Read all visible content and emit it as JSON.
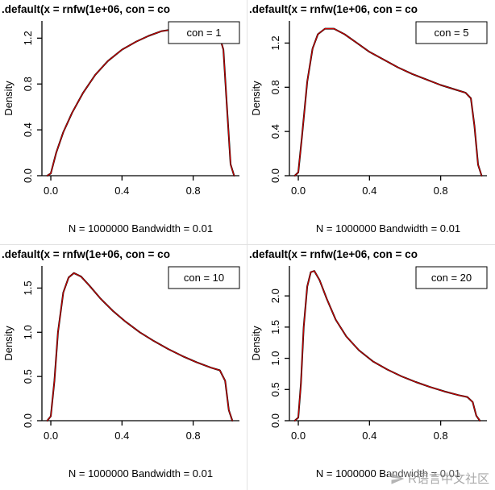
{
  "watermark": {
    "text": "R语言中文社区",
    "icon": "paper-plane-icon"
  },
  "chart_data": [
    {
      "type": "line",
      "title": ".default(x = rnfw(1e+06, con = co",
      "subtitle": "N = 1000000   Bandwidth = 0.01",
      "ylabel": "Density",
      "legend": "con = 1",
      "legend_position": "top-right",
      "grid": false,
      "xlim": [
        -0.05,
        1.06
      ],
      "ylim": [
        0,
        1.35
      ],
      "xticks": [
        0.0,
        0.4,
        0.8
      ],
      "yticks": [
        0.0,
        0.4,
        0.8,
        1.2
      ],
      "series": [
        {
          "name": "kernel-density",
          "color": "#000000"
        },
        {
          "name": "reference-overlay",
          "color": "#d40000"
        }
      ],
      "x": [
        -0.02,
        0.0,
        0.03,
        0.07,
        0.12,
        0.18,
        0.25,
        0.32,
        0.4,
        0.48,
        0.55,
        0.62,
        0.7,
        0.78,
        0.85,
        0.9,
        0.94,
        0.97,
        0.99,
        1.01,
        1.03
      ],
      "y": [
        0,
        0.02,
        0.2,
        0.38,
        0.55,
        0.72,
        0.88,
        1.0,
        1.1,
        1.17,
        1.22,
        1.26,
        1.28,
        1.3,
        1.3,
        1.29,
        1.26,
        1.1,
        0.6,
        0.1,
        0
      ]
    },
    {
      "type": "line",
      "title": ".default(x = rnfw(1e+06, con = co",
      "subtitle": "N = 1000000   Bandwidth = 0.01",
      "ylabel": "Density",
      "legend": "con = 5",
      "legend_position": "top-right",
      "grid": false,
      "xlim": [
        -0.05,
        1.06
      ],
      "ylim": [
        0,
        1.4
      ],
      "xticks": [
        0.0,
        0.4,
        0.8
      ],
      "yticks": [
        0.0,
        0.4,
        0.8,
        1.2
      ],
      "series": [
        {
          "name": "kernel-density",
          "color": "#000000"
        },
        {
          "name": "reference-overlay",
          "color": "#d40000"
        }
      ],
      "x": [
        -0.02,
        0.0,
        0.02,
        0.05,
        0.08,
        0.11,
        0.15,
        0.2,
        0.26,
        0.33,
        0.4,
        0.48,
        0.56,
        0.64,
        0.72,
        0.8,
        0.88,
        0.94,
        0.97,
        0.99,
        1.01,
        1.03
      ],
      "y": [
        0,
        0.03,
        0.35,
        0.85,
        1.15,
        1.28,
        1.33,
        1.33,
        1.28,
        1.2,
        1.12,
        1.05,
        0.98,
        0.92,
        0.87,
        0.82,
        0.78,
        0.75,
        0.7,
        0.45,
        0.1,
        0
      ]
    },
    {
      "type": "line",
      "title": ".default(x = rnfw(1e+06, con = co",
      "subtitle": "N = 1000000   Bandwidth = 0.01",
      "ylabel": "Density",
      "legend": "con = 10",
      "legend_position": "top-right",
      "grid": false,
      "xlim": [
        -0.05,
        1.06
      ],
      "ylim": [
        0,
        1.75
      ],
      "xticks": [
        0.0,
        0.4,
        0.8
      ],
      "yticks": [
        0.0,
        0.5,
        1.0,
        1.5
      ],
      "series": [
        {
          "name": "kernel-density",
          "color": "#000000"
        },
        {
          "name": "reference-overlay",
          "color": "#d40000"
        }
      ],
      "x": [
        -0.02,
        0.0,
        0.02,
        0.04,
        0.07,
        0.1,
        0.13,
        0.17,
        0.22,
        0.28,
        0.35,
        0.42,
        0.5,
        0.58,
        0.66,
        0.74,
        0.82,
        0.9,
        0.95,
        0.98,
        1.0,
        1.02
      ],
      "y": [
        0,
        0.05,
        0.45,
        1.0,
        1.45,
        1.62,
        1.67,
        1.63,
        1.52,
        1.38,
        1.24,
        1.12,
        1.0,
        0.9,
        0.81,
        0.73,
        0.66,
        0.6,
        0.57,
        0.45,
        0.12,
        0
      ]
    },
    {
      "type": "line",
      "title": ".default(x = rnfw(1e+06, con = co",
      "subtitle": "N = 1000000   Bandwidth = 0.01",
      "ylabel": "Density",
      "legend": "con = 20",
      "legend_position": "top-right",
      "grid": false,
      "xlim": [
        -0.05,
        1.06
      ],
      "ylim": [
        0,
        2.48
      ],
      "xticks": [
        0.0,
        0.4,
        0.8
      ],
      "yticks": [
        0.0,
        0.5,
        1.0,
        1.5,
        2.0
      ],
      "series": [
        {
          "name": "kernel-density",
          "color": "#000000"
        },
        {
          "name": "reference-overlay",
          "color": "#d40000"
        }
      ],
      "x": [
        -0.02,
        0.0,
        0.015,
        0.03,
        0.05,
        0.07,
        0.09,
        0.12,
        0.16,
        0.21,
        0.27,
        0.34,
        0.42,
        0.5,
        0.58,
        0.66,
        0.74,
        0.82,
        0.9,
        0.95,
        0.98,
        1.0,
        1.02
      ],
      "y": [
        0,
        0.05,
        0.6,
        1.5,
        2.15,
        2.38,
        2.4,
        2.25,
        1.95,
        1.62,
        1.35,
        1.13,
        0.95,
        0.82,
        0.71,
        0.62,
        0.54,
        0.47,
        0.41,
        0.38,
        0.3,
        0.08,
        0
      ]
    }
  ]
}
